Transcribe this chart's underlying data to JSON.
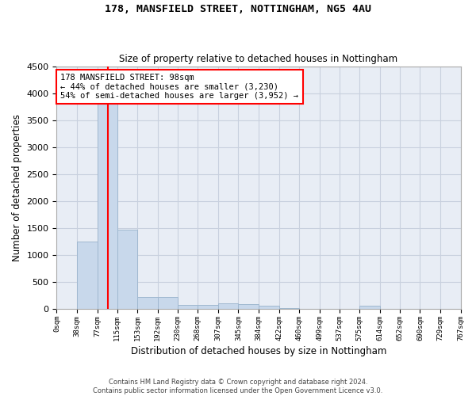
{
  "title": "178, MANSFIELD STREET, NOTTINGHAM, NG5 4AU",
  "subtitle": "Size of property relative to detached houses in Nottingham",
  "xlabel": "Distribution of detached houses by size in Nottingham",
  "ylabel": "Number of detached properties",
  "bar_color": "#c8d8eb",
  "bar_edge_color": "#a0b8d0",
  "grid_color": "#c8d0de",
  "background_color": "#e8edf5",
  "vline_x": 98,
  "vline_color": "red",
  "bin_edges": [
    0,
    38,
    77,
    115,
    153,
    192,
    230,
    268,
    307,
    345,
    384,
    422,
    460,
    499,
    537,
    575,
    614,
    652,
    690,
    729,
    767
  ],
  "bar_heights": [
    5,
    1250,
    4000,
    1470,
    220,
    220,
    80,
    75,
    100,
    95,
    55,
    10,
    0,
    0,
    0,
    60,
    0,
    0,
    0,
    0
  ],
  "ylim": [
    0,
    4500
  ],
  "yticks": [
    0,
    500,
    1000,
    1500,
    2000,
    2500,
    3000,
    3500,
    4000,
    4500
  ],
  "annotation_text": "178 MANSFIELD STREET: 98sqm\n← 44% of detached houses are smaller (3,230)\n54% of semi-detached houses are larger (3,952) →",
  "annotation_box_color": "white",
  "annotation_border_color": "red",
  "footer_line1": "Contains HM Land Registry data © Crown copyright and database right 2024.",
  "footer_line2": "Contains public sector information licensed under the Open Government Licence v3.0."
}
